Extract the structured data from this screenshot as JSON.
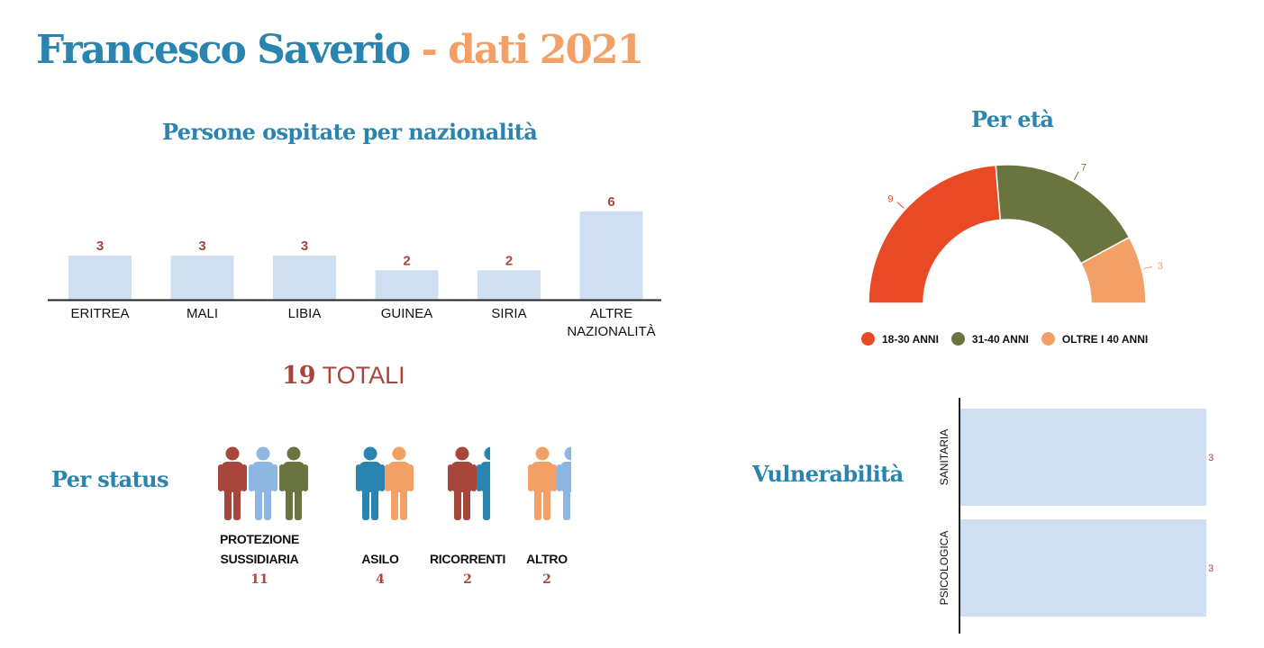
{
  "header": {
    "title_main": "Francesco Saverio",
    "title_sep": " - ",
    "title_accent": "dati 2021"
  },
  "colors": {
    "blue": "#2a84b0",
    "orange": "#f3a066",
    "red_brown": "#a8463c",
    "bar_fill": "#cfdff1",
    "age_18_30": "#e84a26",
    "age_31_40": "#69743e",
    "age_over_40": "#f3a066",
    "person_red": "#a8463c",
    "person_lightblue": "#8db6e2",
    "person_green": "#69743e",
    "person_blue": "#2a84b0",
    "person_orange": "#f3a066"
  },
  "nationality": {
    "title": "Persone ospitate per nazionalità"
  },
  "total": {
    "number": "19",
    "label": "TOTALI"
  },
  "status": {
    "title": "Per status",
    "groups": [
      {
        "label_line1": "PROTEZIONE",
        "label_line2": "SUSSIDIARIA",
        "count": "11",
        "icons": [
          "person_red",
          "person_lightblue",
          "person_green"
        ]
      },
      {
        "label_line1": "ASILO",
        "label_line2": "",
        "count": "4",
        "icons": [
          "person_blue",
          "person_orange"
        ]
      },
      {
        "label_line1": "RICORRENTI",
        "label_line2": "",
        "count": "2",
        "icons": [
          "person_red",
          "person_blue"
        ]
      },
      {
        "label_line1": "ALTRO",
        "label_line2": "",
        "count": "2",
        "icons": [
          "person_orange",
          "person_lightblue"
        ]
      }
    ]
  },
  "age": {
    "title": "Per età"
  },
  "vulnerability": {
    "title": "Vulnerabilità"
  },
  "chart_data": [
    {
      "type": "bar",
      "title": "Persone ospitate per nazionalità",
      "categories": [
        "ERITREA",
        "MALI",
        "LIBIA",
        "GUINEA",
        "SIRIA",
        "ALTRE NAZIONALITÀ"
      ],
      "values": [
        3,
        3,
        3,
        2,
        2,
        6
      ],
      "ylim": [
        0,
        6
      ],
      "grid": false
    },
    {
      "type": "pie",
      "title": "Per età",
      "categories": [
        "18-30 ANNI",
        "31-40 ANNI",
        "OLTRE I 40 ANNI"
      ],
      "values": [
        9,
        7,
        3
      ],
      "legend": "bottom",
      "shape": "semi-donut"
    },
    {
      "type": "bar",
      "orientation": "horizontal",
      "title": "Vulnerabilità",
      "categories": [
        "SANITARIA",
        "PSICOLOGICA"
      ],
      "values": [
        3,
        3
      ],
      "xlim": [
        0,
        3
      ],
      "grid": false
    }
  ]
}
